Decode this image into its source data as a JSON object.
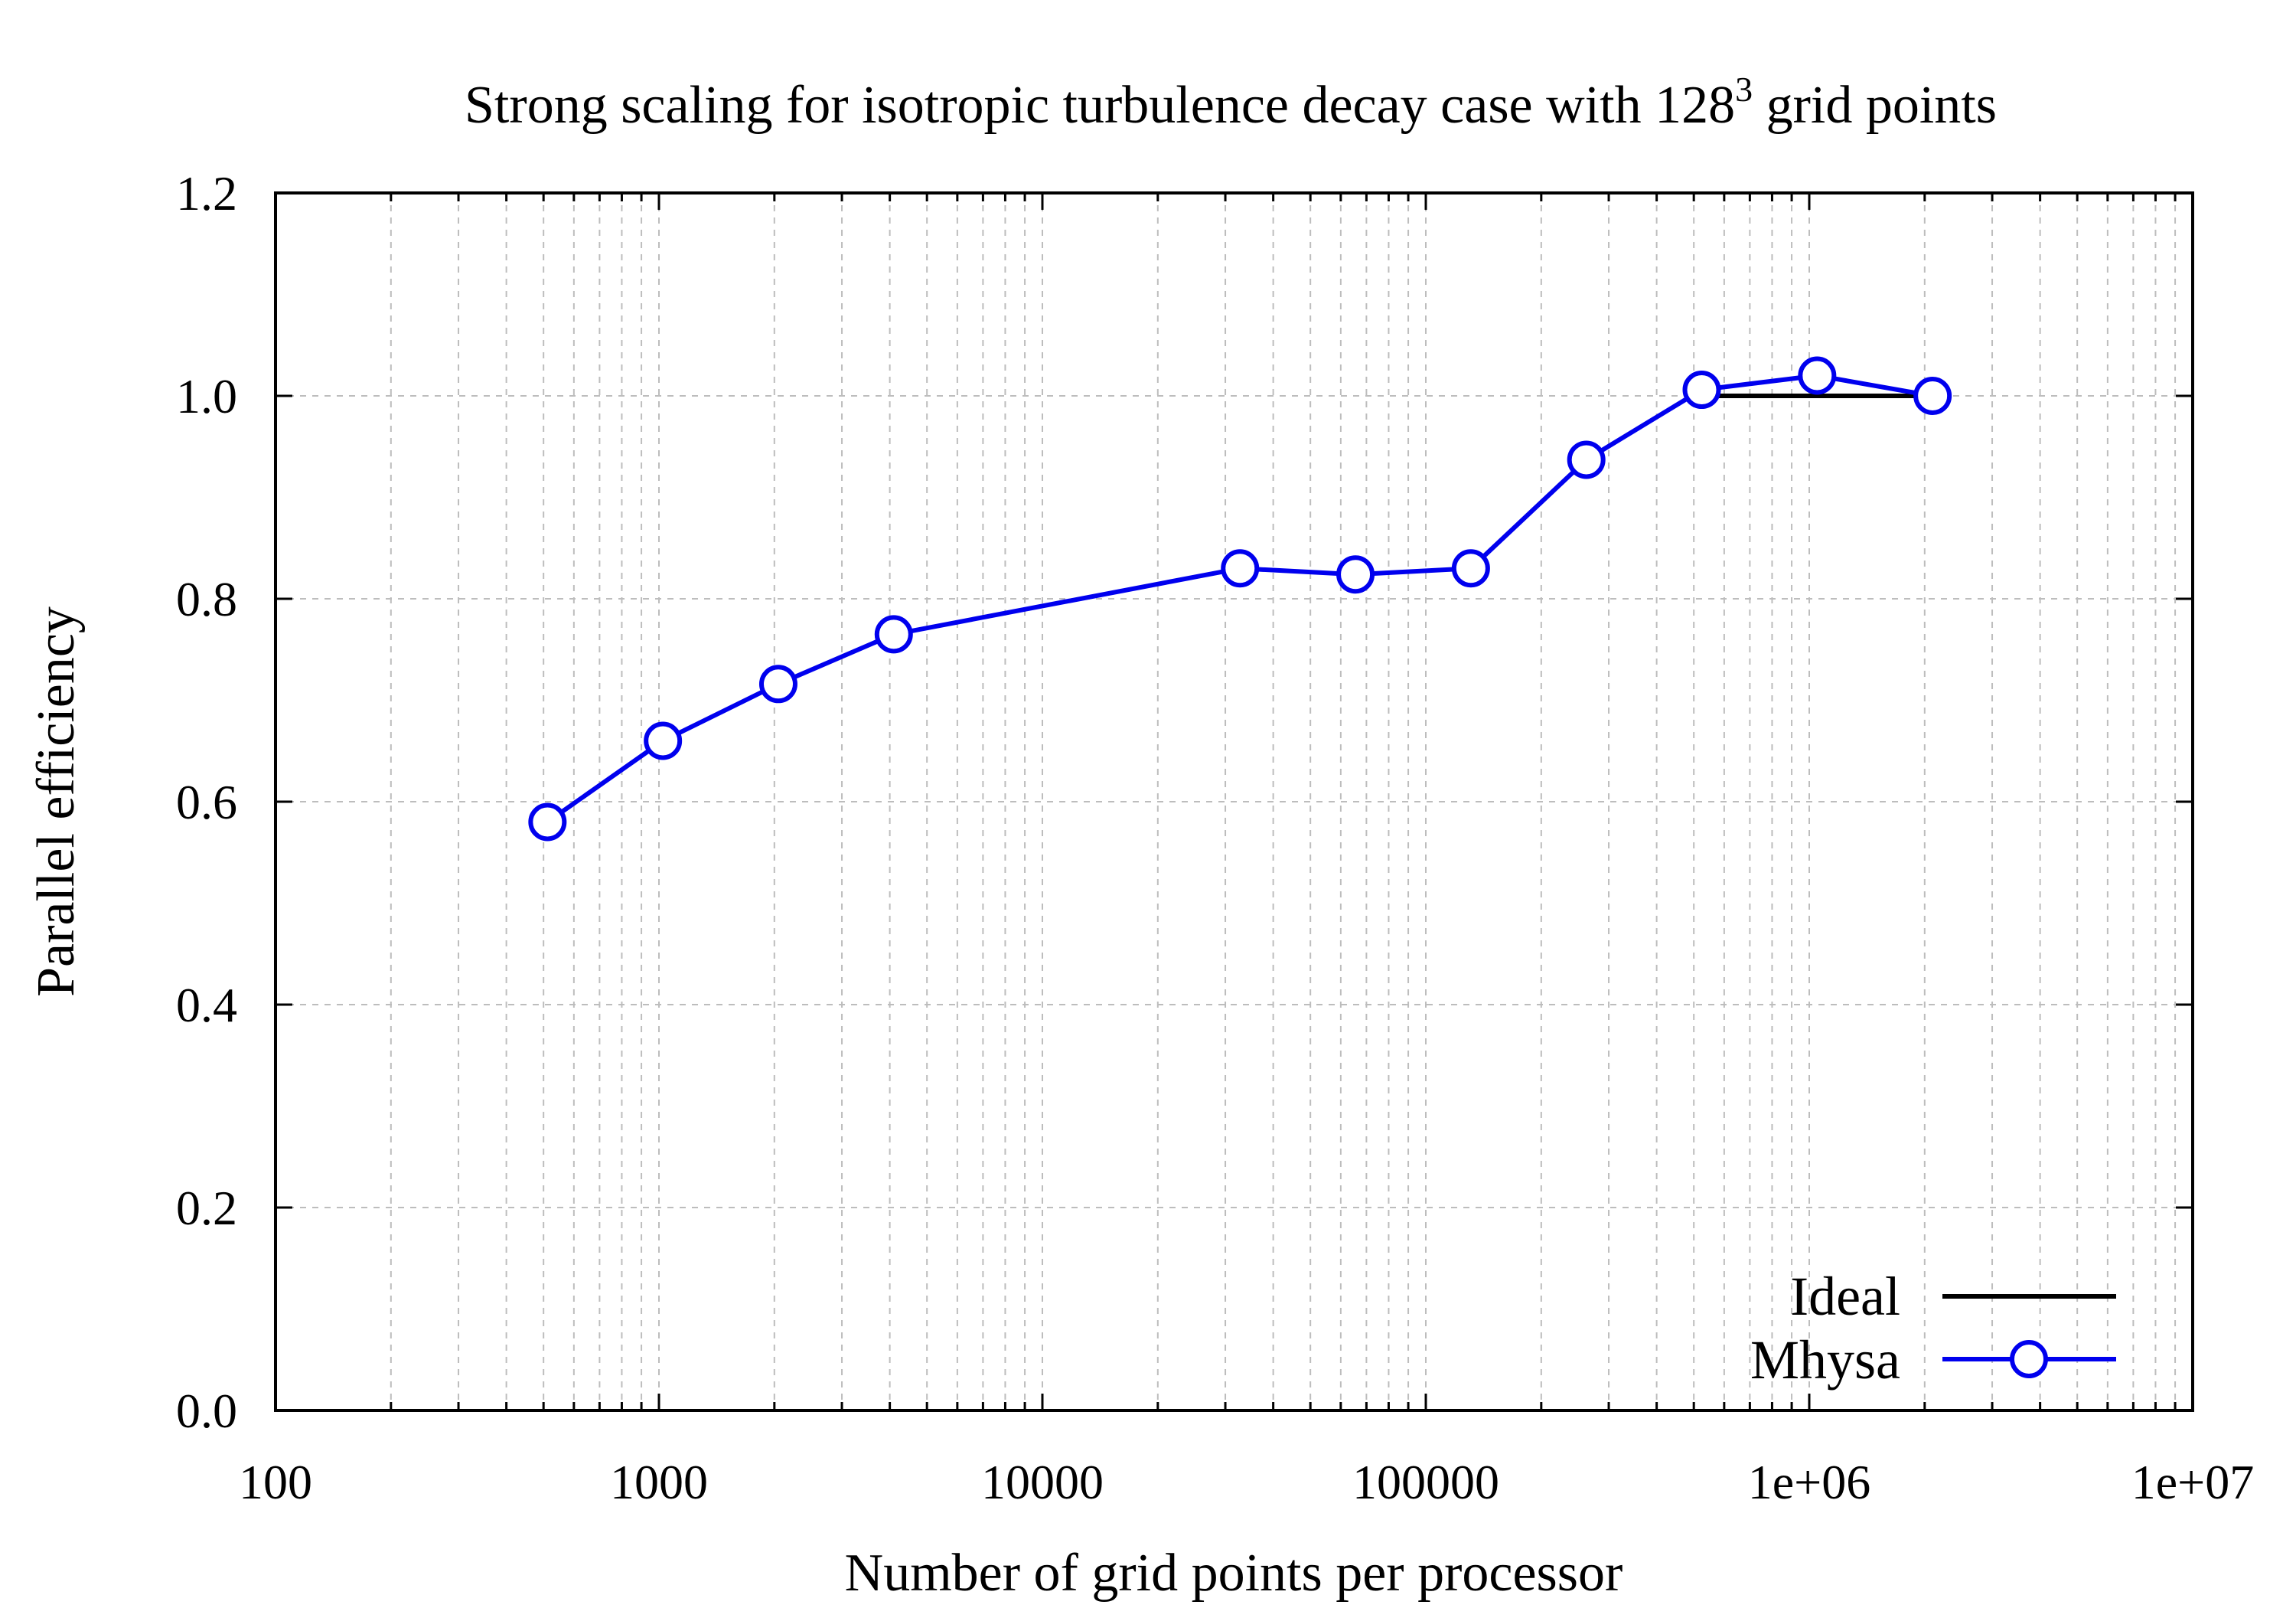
{
  "chart_data": {
    "type": "line",
    "title": "Strong scaling for isotropic turbulence decay case with 128",
    "title_superscript": "3",
    "title_suffix": " grid points",
    "xlabel": "Number of grid points per processor",
    "ylabel": "Parallel efficiency",
    "x_scale": "log",
    "xlim": [
      100,
      10000000
    ],
    "ylim": [
      0.0,
      1.2
    ],
    "x_ticks": [
      100,
      1000,
      10000,
      100000,
      1000000,
      10000000
    ],
    "x_tick_labels": [
      "100",
      "1000",
      "10000",
      "100000",
      "1e+06",
      "1e+07"
    ],
    "y_ticks": [
      0.0,
      0.2,
      0.4,
      0.6,
      0.8,
      1.0,
      1.2
    ],
    "y_tick_labels": [
      "0.0",
      "0.2",
      "0.4",
      "0.6",
      "0.8",
      "1.0",
      "1.2"
    ],
    "grid": true,
    "legend_position": "bottom-right",
    "series": [
      {
        "name": "Ideal",
        "color": "#000000",
        "marker": "none",
        "x": [
          524288,
          2097152
        ],
        "y": [
          1.0,
          1.0
        ]
      },
      {
        "name": "Mhysa",
        "color": "#0000ee",
        "marker": "open-circle",
        "x": [
          512,
          1024,
          2048,
          4096,
          32768,
          65536,
          131072,
          262144,
          524288,
          1048576,
          2097152
        ],
        "y": [
          0.58,
          0.66,
          0.716,
          0.765,
          0.83,
          0.824,
          0.83,
          0.937,
          1.006,
          1.02,
          1.0
        ]
      }
    ]
  }
}
